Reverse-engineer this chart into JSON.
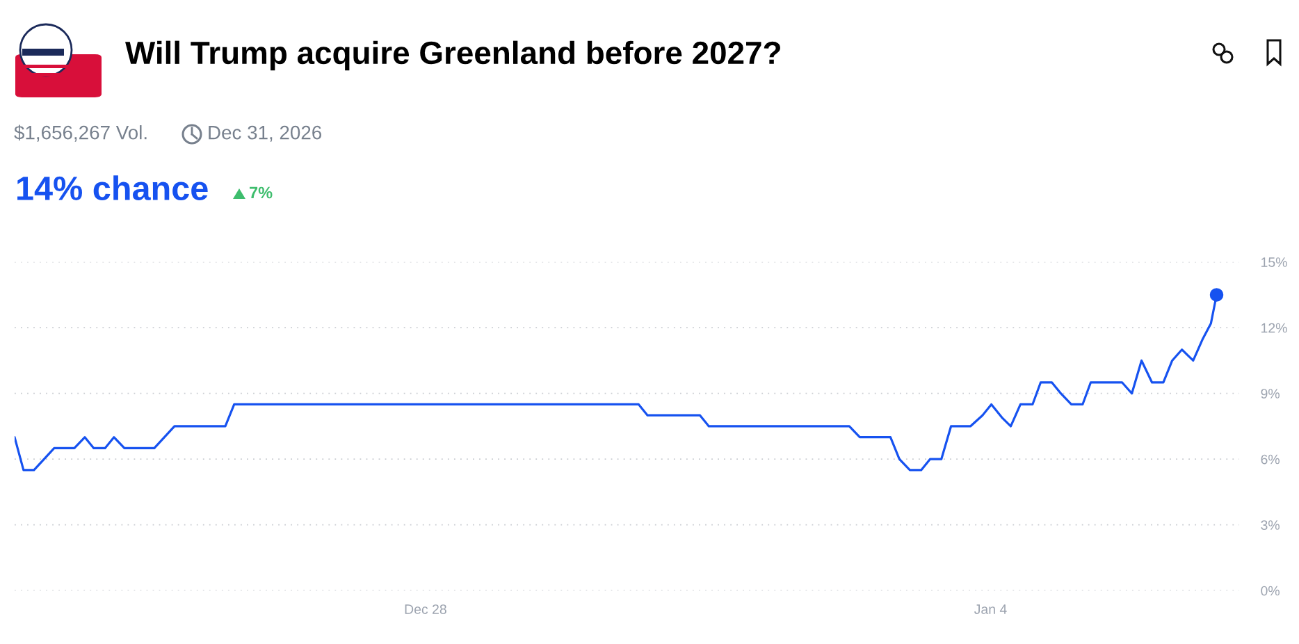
{
  "chart_data": {
    "type": "line",
    "title": "Will Trump acquire Greenland before 2027?",
    "subtitle": "$1,656,267 Vol.",
    "annotations": [
      "Dec 31, 2026",
      "14% chance",
      "7%"
    ],
    "x": [
      "2025-12-22T21:50",
      "2025-12-23T00:29",
      "2025-12-23T03:36",
      "2025-12-23T09:36",
      "2025-12-23T15:36",
      "2025-12-23T18:43",
      "2025-12-23T21:22",
      "2025-12-24T00:43",
      "2025-12-24T03:22",
      "2025-12-24T06:29",
      "2025-12-24T15:22",
      "2025-12-24T21:22",
      "2025-12-25T12:29",
      "2025-12-25T15:07",
      "2025-12-30T15:22",
      "2025-12-30T18:00",
      "2025-12-31T09:36",
      "2025-12-31T12:14",
      "2026-01-02T06:00",
      "2026-01-02T09:07",
      "2026-01-02T18:14",
      "2026-01-02T20:53",
      "2026-01-03T00:00",
      "2026-01-03T03:22",
      "2026-01-03T06:00",
      "2026-01-03T09:22",
      "2026-01-03T12:14",
      "2026-01-03T18:00",
      "2026-01-03T21:36",
      "2026-01-04T00:14",
      "2026-01-04T03:22",
      "2026-01-04T06:00",
      "2026-01-04T08:53",
      "2026-01-04T12:29",
      "2026-01-04T14:53",
      "2026-01-04T18:14",
      "2026-01-04T20:53",
      "2026-01-05T00:00",
      "2026-01-05T03:22",
      "2026-01-05T05:46",
      "2026-01-05T15:07",
      "2026-01-05T18:00",
      "2026-01-05T20:53",
      "2026-01-06T00:00",
      "2026-01-06T03:22",
      "2026-01-06T06:00",
      "2026-01-06T08:53",
      "2026-01-06T12:14",
      "2026-01-06T15:07",
      "2026-01-06T17:31",
      "2026-01-06T19:12"
    ],
    "series": [
      {
        "color": "#1652f0",
        "values": [
          7.0,
          5.5,
          5.5,
          6.5,
          6.5,
          7.0,
          6.5,
          6.5,
          7.0,
          6.5,
          6.5,
          7.5,
          7.5,
          8.5,
          8.5,
          8.0,
          8.0,
          7.5,
          7.5,
          7.0,
          7.0,
          6.0,
          5.5,
          5.5,
          6.0,
          6.0,
          7.5,
          7.5,
          8.0,
          8.5,
          7.9,
          7.5,
          8.5,
          8.5,
          9.5,
          9.5,
          9.0,
          8.5,
          8.5,
          9.5,
          9.5,
          9.0,
          10.5,
          9.5,
          9.5,
          10.5,
          11.0,
          10.5,
          11.5,
          12.2,
          13.5
        ]
      },
      {
        "type": "scatter",
        "color": "#1652f0",
        "x": [
          "2026-01-06T19:12"
        ],
        "values": [
          13.5
        ]
      }
    ],
    "xlim": [
      "2025-12-22T21:50",
      "2026-01-07T01:55"
    ],
    "xticks": [
      {
        "value": "2025-12-28",
        "label": "Dec 28"
      },
      {
        "value": "2026-01-04",
        "label": "Jan 4"
      }
    ],
    "ylim": [
      0,
      15
    ],
    "yticks": [
      {
        "value": 0,
        "label": "0%"
      },
      {
        "value": 3,
        "label": "3%"
      },
      {
        "value": 6,
        "label": "6%"
      },
      {
        "value": 9,
        "label": "9%"
      },
      {
        "value": 12,
        "label": "12%"
      },
      {
        "value": 15,
        "label": "15%"
      }
    ],
    "grid": "y",
    "line_style": "solid",
    "legend": false
  }
}
